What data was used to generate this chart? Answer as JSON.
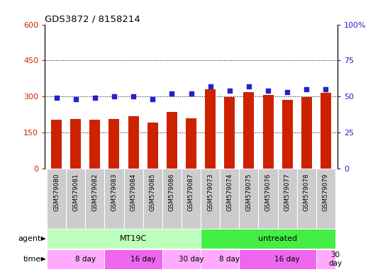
{
  "title": "GDS3872 / 8158214",
  "samples": [
    "GSM579080",
    "GSM579081",
    "GSM579082",
    "GSM579083",
    "GSM579084",
    "GSM579085",
    "GSM579086",
    "GSM579087",
    "GSM579073",
    "GSM579074",
    "GSM579075",
    "GSM579076",
    "GSM579077",
    "GSM579078",
    "GSM579079"
  ],
  "counts": [
    205,
    207,
    205,
    207,
    218,
    193,
    237,
    210,
    330,
    298,
    318,
    308,
    287,
    298,
    317
  ],
  "percentile": [
    49,
    48,
    49,
    50,
    50,
    48,
    52,
    52,
    57,
    54,
    57,
    54,
    53,
    55,
    55
  ],
  "ylim_left": [
    0,
    600
  ],
  "ylim_right": [
    0,
    100
  ],
  "yticks_left": [
    0,
    150,
    300,
    450,
    600
  ],
  "yticks_right": [
    0,
    25,
    50,
    75,
    100
  ],
  "bar_color": "#cc2200",
  "dot_color": "#2222cc",
  "bg_color": "#ffffff",
  "plot_bg": "#ffffff",
  "agent_groups": [
    {
      "text": "MT19C",
      "start": 0,
      "end": 8,
      "color": "#bbffbb"
    },
    {
      "text": "untreated",
      "start": 8,
      "end": 15,
      "color": "#44ee44"
    }
  ],
  "time_groups": [
    {
      "text": "8 day",
      "start": 0,
      "end": 3,
      "color": "#ffaaff"
    },
    {
      "text": "16 day",
      "start": 3,
      "end": 6,
      "color": "#ee66ee"
    },
    {
      "text": "30 day",
      "start": 6,
      "end": 8,
      "color": "#ffaaff"
    },
    {
      "text": "8 day",
      "start": 8,
      "end": 10,
      "color": "#ffaaff"
    },
    {
      "text": "16 day",
      "start": 10,
      "end": 14,
      "color": "#ee66ee"
    },
    {
      "text": "30\nday",
      "start": 14,
      "end": 15,
      "color": "#ffaaff"
    }
  ],
  "xticklabel_bg": "#cccccc",
  "hgrid_vals": [
    150,
    300,
    450
  ]
}
